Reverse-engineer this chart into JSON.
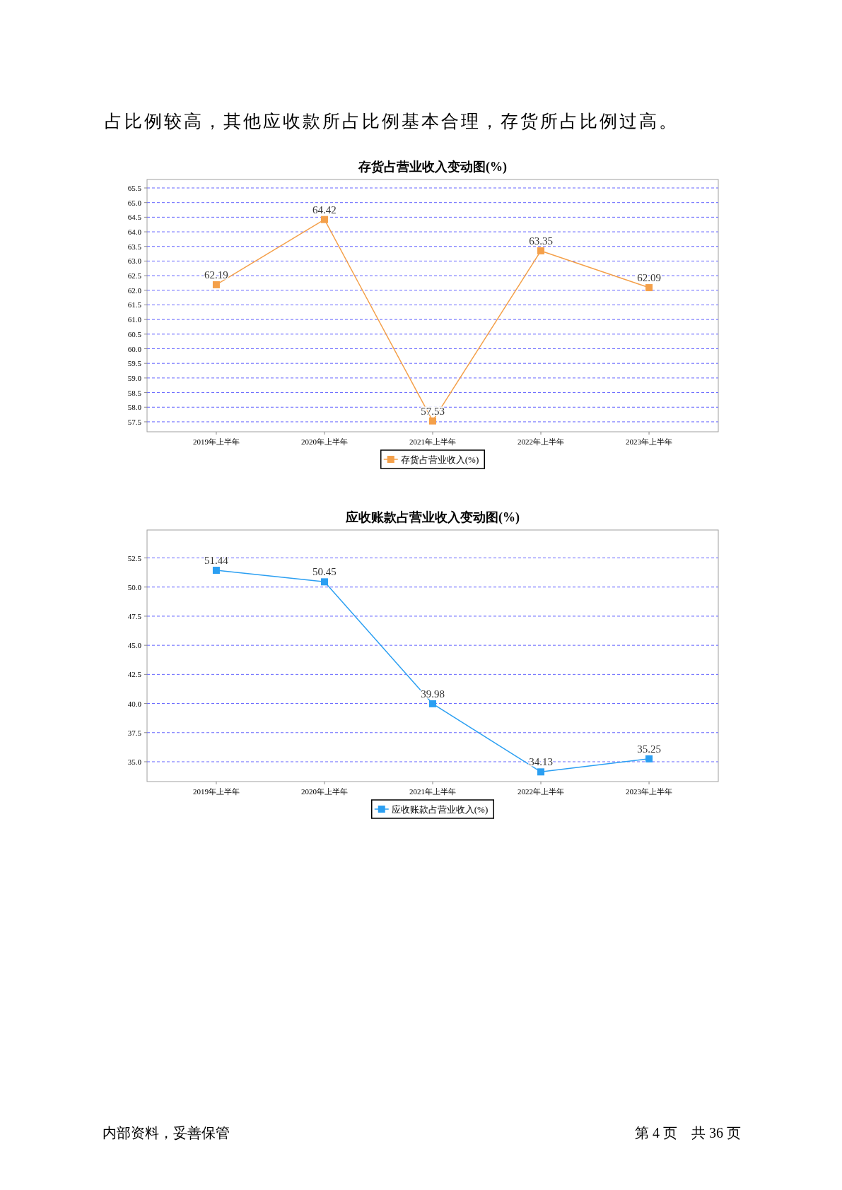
{
  "chart_data": [
    {
      "type": "line",
      "title": "存货占营业收入变动图(%)",
      "categories": [
        "2019年上半年",
        "2020年上半年",
        "2021年上半年",
        "2022年上半年",
        "2023年上半年"
      ],
      "series": [
        {
          "name": "存货占营业收入(%)",
          "color": "#f4a04a",
          "values": [
            62.19,
            64.42,
            57.53,
            63.35,
            62.09
          ]
        }
      ],
      "ylim": [
        57.16,
        65.79
      ],
      "yticks": [
        {
          "value": 57.5,
          "label": "57.5"
        },
        {
          "value": 58,
          "label": "58.0"
        },
        {
          "value": 58.5,
          "label": "58.5"
        },
        {
          "value": 59,
          "label": "59.0"
        },
        {
          "value": 59.5,
          "label": "59.5"
        },
        {
          "value": 60,
          "label": "60.0"
        },
        {
          "value": 60.5,
          "label": "60.5"
        },
        {
          "value": 61,
          "label": "61.0"
        },
        {
          "value": 61.5,
          "label": "61.5"
        },
        {
          "value": 62,
          "label": "62.0"
        },
        {
          "value": 62.5,
          "label": "62.5"
        },
        {
          "value": 63,
          "label": "63.0"
        },
        {
          "value": 63.5,
          "label": "63.5"
        },
        {
          "value": 64,
          "label": "64.0"
        },
        {
          "value": 64.5,
          "label": "64.5"
        },
        {
          "value": 65,
          "label": "65.0"
        },
        {
          "value": 65.5,
          "label": "65.5"
        }
      ],
      "grid": "y",
      "legend": "bottom",
      "marker": "square",
      "line_style": "solid",
      "data_labels": true,
      "annotations": [
        "占比例较高，其他应收款所占比例基本合理，存货所占比例过高。"
      ]
    },
    {
      "type": "line",
      "title": "应收账款占营业收入变动图(%)",
      "categories": [
        "2019年上半年",
        "2020年上半年",
        "2021年上半年",
        "2022年上半年",
        "2023年上半年"
      ],
      "series": [
        {
          "name": "应收账款占营业收入(%)",
          "color": "#2b9ff2",
          "values": [
            51.44,
            50.45,
            39.98,
            34.13,
            35.25
          ]
        }
      ],
      "ylim": [
        33.3,
        54.9
      ],
      "yticks": [
        {
          "value": 35,
          "label": "35.0"
        },
        {
          "value": 37.5,
          "label": "37.5"
        },
        {
          "value": 40,
          "label": "40.0"
        },
        {
          "value": 42.5,
          "label": "42.5"
        },
        {
          "value": 45,
          "label": "45.0"
        },
        {
          "value": 47.5,
          "label": "47.5"
        },
        {
          "value": 50,
          "label": "50.0"
        },
        {
          "value": 52.5,
          "label": "52.5"
        }
      ],
      "grid": "y",
      "legend": "bottom",
      "marker": "square",
      "line_style": "solid",
      "data_labels": true,
      "annotations": [
        "内部资料，妥善保管",
        "第 4 页　共 36 页"
      ]
    }
  ]
}
